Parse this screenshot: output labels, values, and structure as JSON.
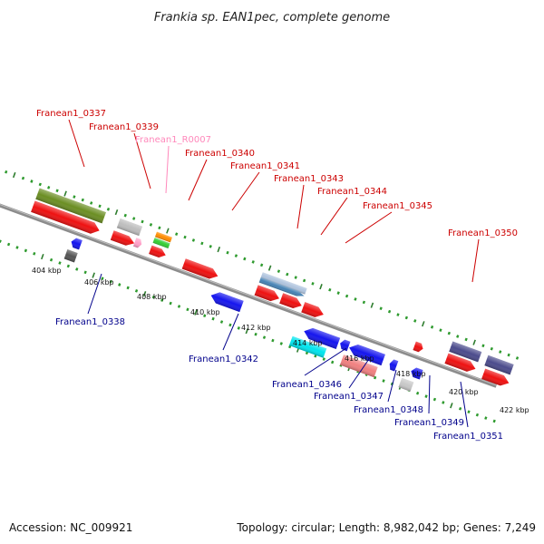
{
  "title": "Frankia sp. EAN1pec, complete genome",
  "accession": "Accession: NC_009921",
  "summary": "Topology: circular; Length: 8,982,042 bp; Genes: 7,249",
  "colors": {
    "backbone": "#8c8c8c",
    "tick_major": "#2e7d2e",
    "tick_minor": "#2e9a2e",
    "label_top": "#cc0000",
    "label_bottom": "#00008b",
    "label_rna": "#ff88bb"
  },
  "scale_labels": [
    {
      "text": "404 kbp",
      "x": 404
    },
    {
      "text": "406 kbp",
      "x": 406
    },
    {
      "text": "408 kbp",
      "x": 408
    },
    {
      "text": "410 kbp",
      "x": 410
    },
    {
      "text": "412 kbp",
      "x": 412
    },
    {
      "text": "414 kbp",
      "x": 414
    },
    {
      "text": "416 kbp",
      "x": 416
    },
    {
      "text": "418 kbp",
      "x": 418
    },
    {
      "text": "420 kbp",
      "x": 420
    },
    {
      "text": "422 kbp",
      "x": 422
    }
  ],
  "gene_labels": {
    "top": [
      "Franean1_0337",
      "Franean1_0339",
      "Franean1_R0007",
      "Franean1_0340",
      "Franean1_0341",
      "Franean1_0343",
      "Franean1_0344",
      "Franean1_0345",
      "Franean1_0350"
    ],
    "bottom": [
      "Franean1_0338",
      "Franean1_0342",
      "Franean1_0346",
      "Franean1_0347",
      "Franean1_0348",
      "Franean1_0349",
      "Franean1_0351"
    ]
  }
}
